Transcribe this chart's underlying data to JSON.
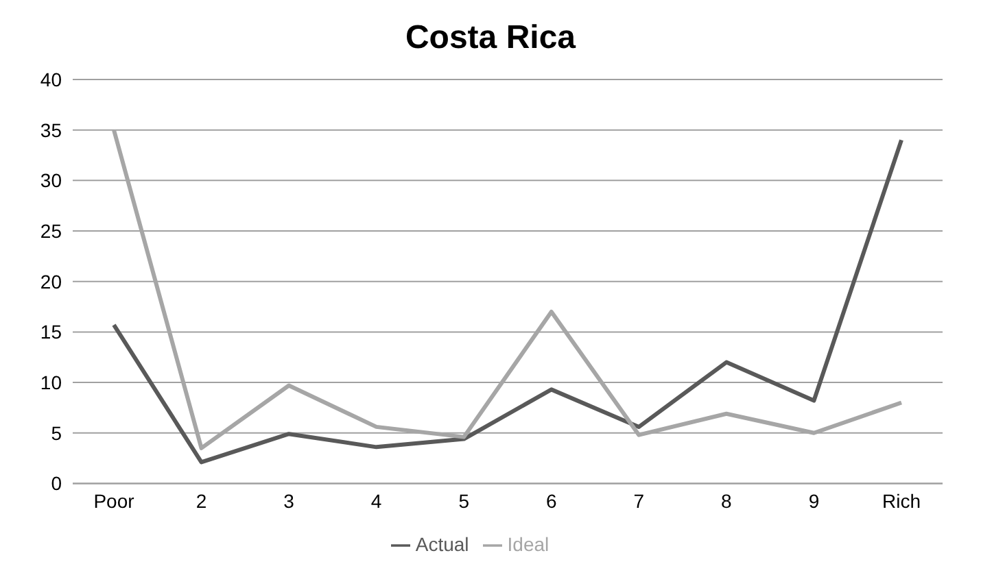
{
  "chart_data": {
    "type": "line",
    "title": "Costa Rica",
    "categories": [
      "Poor",
      "2",
      "3",
      "4",
      "5",
      "6",
      "7",
      "8",
      "9",
      "Rich"
    ],
    "series": [
      {
        "name": "Actual",
        "color": "#595959",
        "values": [
          15.7,
          2.1,
          4.9,
          3.6,
          4.4,
          9.3,
          5.6,
          12,
          8.2,
          34
        ]
      },
      {
        "name": "Ideal",
        "color": "#a6a6a6",
        "values": [
          35,
          3.5,
          9.7,
          5.6,
          4.6,
          17,
          4.8,
          6.9,
          5,
          8
        ]
      }
    ],
    "ylim": [
      0,
      40
    ],
    "yticks": [
      0,
      5,
      10,
      15,
      20,
      25,
      30,
      35,
      40
    ],
    "grid": "y",
    "legend": "bottom",
    "marker": "none",
    "line_style": "solid"
  }
}
